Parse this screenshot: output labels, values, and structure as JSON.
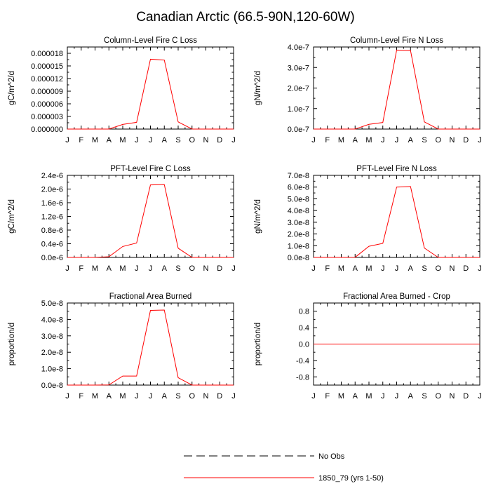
{
  "figure_title": "Canadian Arctic (66.5-90N,120-60W)",
  "legend": {
    "obs_label": "No Obs",
    "model_label": "1850_79 (yrs 1-50)",
    "obs_color": "#000000",
    "model_color": "#ff0000"
  },
  "chart_data": [
    {
      "type": "line",
      "title": "Column-Level Fire C Loss",
      "ylabel": "gC/m^2/d",
      "xlabel": "",
      "categories": [
        "J",
        "F",
        "M",
        "A",
        "M",
        "J",
        "J",
        "A",
        "S",
        "O",
        "N",
        "D",
        "J"
      ],
      "ylim": [
        0,
        1.95e-05
      ],
      "yticks": [
        0,
        3e-06,
        6e-06,
        9e-06,
        1.2e-05,
        1.5e-05,
        1.8e-05
      ],
      "ytick_labels": [
        "0.000000",
        "0.000003",
        "0.000006",
        "0.000009",
        "0.000012",
        "0.000015",
        "0.000018"
      ],
      "series": [
        {
          "name": "1850_79 (yrs 1-50)",
          "color": "#ff0000",
          "values": [
            0,
            0,
            0,
            0,
            1.1e-06,
            1.6e-06,
            1.66e-05,
            1.64e-05,
            1.7e-06,
            0,
            0,
            0,
            0
          ]
        }
      ]
    },
    {
      "type": "line",
      "title": "Column-Level Fire N Loss",
      "ylabel": "gN/m^2/d",
      "xlabel": "",
      "categories": [
        "J",
        "F",
        "M",
        "A",
        "M",
        "J",
        "J",
        "A",
        "S",
        "O",
        "N",
        "D",
        "J"
      ],
      "ylim": [
        0,
        4e-07
      ],
      "yticks": [
        0,
        1e-07,
        2e-07,
        3e-07,
        4e-07
      ],
      "ytick_labels": [
        "0.0e-7",
        "1.0e-7",
        "2.0e-7",
        "3.0e-7",
        "4.0e-7"
      ],
      "series": [
        {
          "name": "1850_79 (yrs 1-50)",
          "color": "#ff0000",
          "values": [
            0,
            0,
            0,
            0,
            2.3e-08,
            3.2e-08,
            3.85e-07,
            3.83e-07,
            3.5e-08,
            0,
            0,
            0,
            0
          ]
        }
      ]
    },
    {
      "type": "line",
      "title": "PFT-Level Fire C Loss",
      "ylabel": "gC/m^2/d",
      "xlabel": "",
      "categories": [
        "J",
        "F",
        "M",
        "A",
        "M",
        "J",
        "J",
        "A",
        "S",
        "O",
        "N",
        "D",
        "J"
      ],
      "ylim": [
        0,
        2.4e-06
      ],
      "yticks": [
        0,
        4e-07,
        8e-07,
        1.2e-06,
        1.6e-06,
        2e-06,
        2.4e-06
      ],
      "ytick_labels": [
        "0.0e-6",
        "0.4e-6",
        "0.8e-6",
        "1.2e-6",
        "1.6e-6",
        "2.0e-6",
        "2.4e-6"
      ],
      "series": [
        {
          "name": "1850_79 (yrs 1-50)",
          "color": "#ff0000",
          "values": [
            0,
            0,
            0,
            2e-08,
            3.2e-07,
            4.2e-07,
            2.12e-06,
            2.13e-06,
            2.7e-07,
            0,
            0,
            0,
            0
          ]
        }
      ]
    },
    {
      "type": "line",
      "title": "PFT-Level Fire N Loss",
      "ylabel": "gN/m^2/d",
      "xlabel": "",
      "categories": [
        "J",
        "F",
        "M",
        "A",
        "M",
        "J",
        "J",
        "A",
        "S",
        "O",
        "N",
        "D",
        "J"
      ],
      "ylim": [
        0,
        7e-08
      ],
      "yticks": [
        0,
        1e-08,
        2e-08,
        3e-08,
        4e-08,
        5e-08,
        6e-08,
        7e-08
      ],
      "ytick_labels": [
        "0.0e-8",
        "1.0e-8",
        "2.0e-8",
        "3.0e-8",
        "4.0e-8",
        "5.0e-8",
        "6.0e-8",
        "7.0e-8"
      ],
      "series": [
        {
          "name": "1850_79 (yrs 1-50)",
          "color": "#ff0000",
          "values": [
            0,
            0,
            0,
            1e-10,
            9.5e-09,
            1.2e-08,
            6e-08,
            6.05e-08,
            8e-09,
            0,
            0,
            0,
            0
          ]
        }
      ]
    },
    {
      "type": "line",
      "title": "Fractional Area Burned",
      "ylabel": "proportion/d",
      "xlabel": "",
      "categories": [
        "J",
        "F",
        "M",
        "A",
        "M",
        "J",
        "J",
        "A",
        "S",
        "O",
        "N",
        "D",
        "J"
      ],
      "ylim": [
        0,
        5e-08
      ],
      "yticks": [
        0,
        1e-08,
        2e-08,
        3e-08,
        4e-08,
        5e-08
      ],
      "ytick_labels": [
        "0.0e-8",
        "1.0e-8",
        "2.0e-8",
        "3.0e-8",
        "4.0e-8",
        "5.0e-8"
      ],
      "series": [
        {
          "name": "1850_79 (yrs 1-50)",
          "color": "#ff0000",
          "values": [
            0,
            0,
            0,
            1e-10,
            5.5e-09,
            5.5e-09,
            4.55e-08,
            4.57e-08,
            4.5e-09,
            0,
            0,
            0,
            0
          ]
        }
      ]
    },
    {
      "type": "line",
      "title": "Fractional Area Burned - Crop",
      "ylabel": "proportion/d",
      "xlabel": "",
      "categories": [
        "J",
        "F",
        "M",
        "A",
        "M",
        "J",
        "J",
        "A",
        "S",
        "O",
        "N",
        "D",
        "J"
      ],
      "ylim": [
        -1.0,
        1.0
      ],
      "yticks": [
        -0.8,
        -0.4,
        0.0,
        0.4,
        0.8
      ],
      "ytick_labels": [
        "-0.8",
        "-0.4",
        "0.0",
        "0.4",
        "0.8"
      ],
      "series": [
        {
          "name": "1850_79 (yrs 1-50)",
          "color": "#ff0000",
          "values": [
            0,
            0,
            0,
            0,
            0,
            0,
            0,
            0,
            0,
            0,
            0,
            0,
            0
          ]
        }
      ]
    }
  ]
}
